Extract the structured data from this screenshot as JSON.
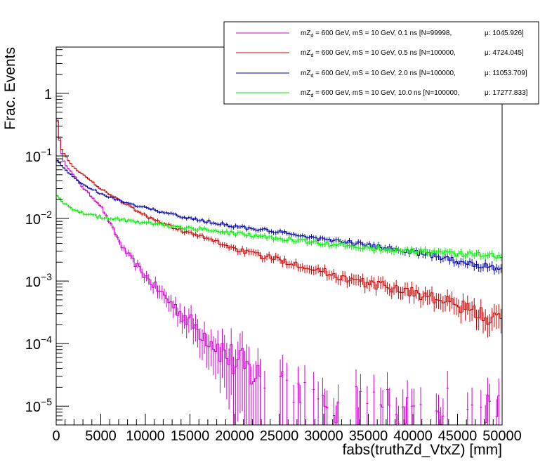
{
  "chart_data": {
    "type": "line",
    "title": "",
    "xlabel": "fabs(truthZd_VtxZ) [mm]",
    "ylabel": "Frac. Events",
    "xlim": [
      0,
      50000
    ],
    "ylim": [
      5e-06,
      5.5
    ],
    "yscale": "log",
    "grid": false,
    "legend_position": "top-right",
    "x_ticks": [
      "0",
      "5000",
      "10000",
      "15000",
      "20000",
      "25000",
      "30000",
      "35000",
      "40000",
      "45000",
      "50000"
    ],
    "y_ticks": [
      {
        "value": 1,
        "mant": "1",
        "exp": ""
      },
      {
        "value": 0.1,
        "mant": "10",
        "exp": "−1"
      },
      {
        "value": 0.01,
        "mant": "10",
        "exp": "−2"
      },
      {
        "value": 0.001,
        "mant": "10",
        "exp": "−3"
      },
      {
        "value": 0.0001,
        "mant": "10",
        "exp": "−4"
      },
      {
        "value": 1e-05,
        "mant": "10",
        "exp": "−5"
      }
    ],
    "series": [
      {
        "name": "mZd = 600 GeV, mS = 10 GeV, 0.1 ns [N=99998, μ: 1045.926]",
        "label_pre": "mZ",
        "label_sub": "d",
        "label_post": " = 600 GeV, mS = 10 GeV, 0.1 ns [N=99998,",
        "label_mu": "μ: 1045.926]",
        "color": "#cc00cc",
        "decay": 1045.926,
        "x": [
          0,
          500,
          1000,
          2000,
          3000,
          5000,
          7500,
          10000,
          12500,
          15000,
          17500,
          20000,
          22500,
          25000,
          30000,
          35000,
          40000,
          45000,
          50000
        ],
        "y": [
          0.55,
          0.12,
          0.075,
          0.048,
          0.031,
          0.016,
          0.0033,
          0.0012,
          0.0005,
          0.00022,
          0.00011,
          5e-05,
          3e-05,
          2e-05,
          1e-05,
          1e-05,
          1e-05,
          1e-05,
          1e-05
        ]
      },
      {
        "name": "mZd = 600 GeV, mS = 10 GeV, 0.5 ns [N=100000, μ: 4724.045]",
        "label_pre": "mZ",
        "label_sub": "d",
        "label_post": " = 600 GeV, mS = 10 GeV, 0.5 ns [N=100000,",
        "label_mu": "μ: 4724.045]",
        "color": "#cc0000",
        "decay": 4724.045,
        "x": [
          0,
          500,
          1000,
          2000,
          3000,
          5000,
          7500,
          10000,
          12500,
          15000,
          17500,
          20000,
          22500,
          25000,
          27500,
          30000,
          32500,
          35000,
          37500,
          40000,
          42500,
          45000,
          47500,
          50000
        ],
        "y": [
          0.5,
          0.14,
          0.1,
          0.065,
          0.05,
          0.03,
          0.018,
          0.011,
          0.0078,
          0.0058,
          0.0045,
          0.0033,
          0.0026,
          0.0022,
          0.0018,
          0.0014,
          0.0011,
          0.0009,
          0.0008,
          0.00066,
          0.00052,
          0.0004,
          0.0003,
          0.00022
        ]
      },
      {
        "name": "mZd = 600 GeV, mS = 10 GeV, 2.0 ns [N=100000, μ: 11053.709]",
        "label_pre": "mZ",
        "label_sub": "d",
        "label_post": " = 600 GeV, mS = 10 GeV, 2.0 ns [N=100000,",
        "label_mu": "μ: 11053.709]",
        "color": "#0000aa",
        "decay": 11053.709,
        "x": [
          0,
          500,
          1000,
          2000,
          3000,
          5000,
          7500,
          10000,
          12500,
          15000,
          17500,
          20000,
          22500,
          25000,
          27500,
          30000,
          32500,
          35000,
          37500,
          40000,
          42500,
          45000,
          47500,
          50000
        ],
        "y": [
          0.09,
          0.075,
          0.06,
          0.045,
          0.035,
          0.025,
          0.018,
          0.015,
          0.012,
          0.01,
          0.0087,
          0.0075,
          0.0067,
          0.006,
          0.0053,
          0.0046,
          0.0042,
          0.0037,
          0.0033,
          0.0029,
          0.0025,
          0.0021,
          0.0018,
          0.0016
        ]
      },
      {
        "name": "mZd = 600 GeV, mS = 10 GeV, 10.0 ns [N=100000, μ: 17277.833]",
        "label_pre": "mZ",
        "label_sub": "d",
        "label_post": " = 600 GeV, mS = 10 GeV, 10.0 ns [N=100000,",
        "label_mu": "μ: 17277.833]",
        "color": "#00ee00",
        "decay": 17277.833,
        "x": [
          0,
          500,
          1000,
          2000,
          3000,
          5000,
          7500,
          10000,
          12500,
          15000,
          17500,
          20000,
          22500,
          25000,
          27500,
          30000,
          32500,
          35000,
          37500,
          40000,
          42500,
          45000,
          47500,
          50000
        ],
        "y": [
          0.025,
          0.02,
          0.017,
          0.014,
          0.012,
          0.0105,
          0.0095,
          0.0085,
          0.0077,
          0.007,
          0.0064,
          0.0058,
          0.0053,
          0.0048,
          0.0044,
          0.004,
          0.0037,
          0.0034,
          0.0032,
          0.003,
          0.0029,
          0.0027,
          0.0026,
          0.0025
        ]
      }
    ]
  }
}
